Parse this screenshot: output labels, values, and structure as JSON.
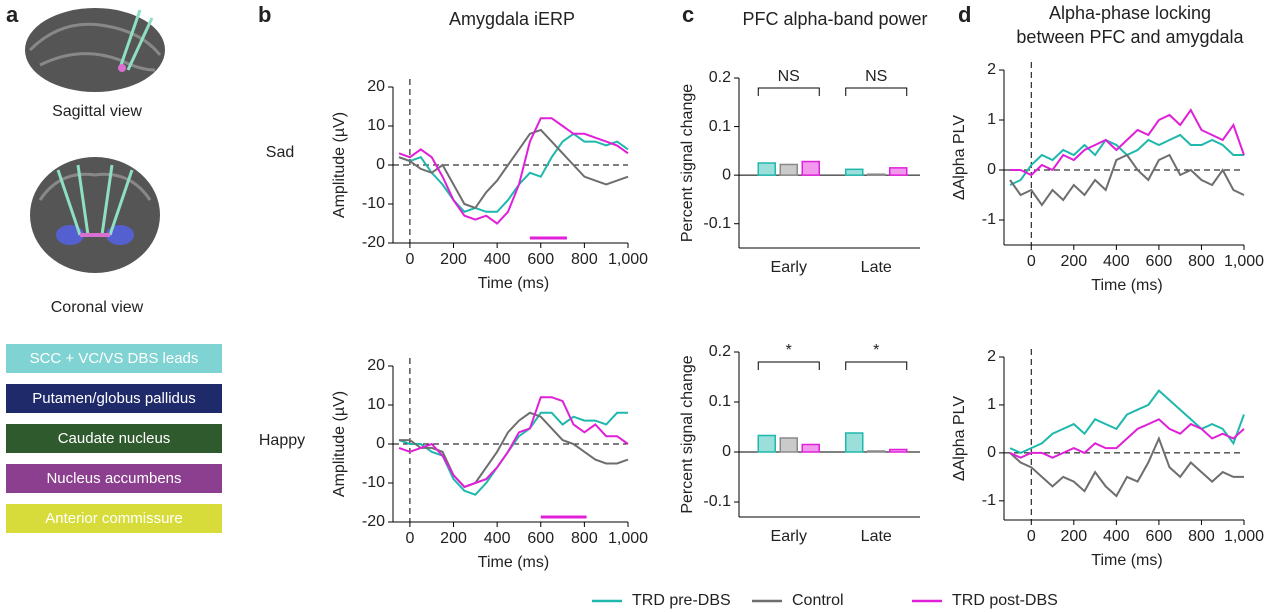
{
  "panel_labels": [
    "a",
    "b",
    "c",
    "d"
  ],
  "row_labels": [
    "Sad",
    "Happy"
  ],
  "view_labels": [
    "Sagittal view",
    "Coronal view"
  ],
  "anatomy_legend": [
    {
      "label": "SCC + VC/VS DBS leads",
      "color": "#7fd3d3"
    },
    {
      "label": "Putamen/globus pallidus",
      "color": "#1f2a6b"
    },
    {
      "label": "Caudate nucleus",
      "color": "#2e5a2e"
    },
    {
      "label": "Nucleus accumbens",
      "color": "#8c3f8f"
    },
    {
      "label": "Anterior commissure",
      "color": "#d7dc3a"
    }
  ],
  "chart_data": [
    {
      "type": "line",
      "title": "Amygdala iERP",
      "x_label": "Time (ms)",
      "y_label": "Amplitude (µV)",
      "x": [
        -50,
        0,
        50,
        100,
        150,
        200,
        250,
        300,
        350,
        400,
        450,
        500,
        550,
        600,
        650,
        700,
        750,
        800,
        850,
        900,
        950,
        1000
      ],
      "series": [
        {
          "name": "TRD pre-DBS",
          "color": "#1fb8ad",
          "values": [
            2,
            1,
            2,
            -2,
            -5,
            -9,
            -12,
            -11,
            -12,
            -12,
            -9,
            -5,
            -2,
            -3,
            2,
            6,
            8,
            6,
            6,
            5,
            6,
            4
          ]
        },
        {
          "name": "Control",
          "color": "#6e6e6e",
          "values": [
            2,
            1,
            -1,
            -2,
            0,
            -5,
            -10,
            -11,
            -7,
            -4,
            0,
            4,
            8,
            9,
            6,
            3,
            0,
            -3,
            -4,
            -5,
            -4,
            -3
          ]
        },
        {
          "name": "TRD post-DBS",
          "color": "#e020d8",
          "values": [
            3,
            2,
            4,
            2,
            -3,
            -9,
            -13,
            -14,
            -13,
            -15,
            -12,
            -5,
            6,
            12,
            12,
            10,
            8,
            8,
            7,
            6,
            5,
            3
          ]
        }
      ],
      "significance_window": [
        550,
        720
      ],
      "xlim": [
        -50,
        1000
      ],
      "xticks": [
        0,
        200,
        400,
        600,
        800,
        {
          "value": 1000,
          "label": "1,000"
        }
      ],
      "ylim": [
        -20,
        20
      ],
      "yticks": [
        -20,
        -10,
        0,
        10,
        20
      ]
    },
    {
      "type": "line",
      "x_label": "Time (ms)",
      "y_label": "Amplitude (µV)",
      "x": [
        -50,
        0,
        50,
        100,
        150,
        200,
        250,
        300,
        350,
        400,
        450,
        500,
        550,
        600,
        650,
        700,
        750,
        800,
        850,
        900,
        950,
        1000
      ],
      "series": [
        {
          "color": "#1fb8ad",
          "values": [
            1,
            0,
            0,
            -2,
            -3,
            -9,
            -12,
            -13,
            -10,
            -6,
            -2,
            2,
            4,
            8,
            8,
            5,
            7,
            6,
            6,
            5,
            8,
            8
          ]
        },
        {
          "color": "#6e6e6e",
          "values": [
            1,
            1,
            -1,
            -1,
            -2,
            -8,
            -11,
            -10,
            -6,
            -2,
            3,
            6,
            8,
            7,
            4,
            1,
            0,
            -2,
            -4,
            -5,
            -5,
            -4
          ]
        },
        {
          "color": "#e020d8",
          "values": [
            -1,
            -2,
            -1,
            0,
            -3,
            -8,
            -11,
            -10,
            -9,
            -6,
            -2,
            3,
            4,
            12,
            12,
            11,
            5,
            3,
            5,
            2,
            2,
            0
          ]
        }
      ],
      "significance_window": [
        600,
        810
      ],
      "xlim": [
        -50,
        1000
      ],
      "xticks": [
        0,
        200,
        400,
        600,
        800,
        {
          "value": 1000,
          "label": "1,000"
        }
      ],
      "ylim": [
        -20,
        20
      ],
      "yticks": [
        -20,
        -10,
        0,
        10,
        20
      ]
    },
    {
      "type": "bar",
      "title": "PFC alpha-band power",
      "y_label": "Percent signal change",
      "categories": [
        "Early",
        "Late"
      ],
      "series": [
        {
          "color": "#1fb8ad",
          "values": [
            0.025,
            0.012
          ]
        },
        {
          "color": "#8a8a8a",
          "values": [
            0.022,
            0.002
          ]
        },
        {
          "color": "#e020d8",
          "values": [
            0.028,
            0.015
          ]
        }
      ],
      "annotations": [
        "NS",
        "NS"
      ],
      "ylim": [
        -0.15,
        0.2
      ],
      "yticks": [
        -0.1,
        0,
        0.1,
        0.2
      ]
    },
    {
      "type": "bar",
      "y_label": "Percent signal change",
      "categories": [
        "Early",
        "Late"
      ],
      "series": [
        {
          "color": "#1fb8ad",
          "values": [
            0.033,
            0.038
          ]
        },
        {
          "color": "#8a8a8a",
          "values": [
            0.028,
            0.002
          ]
        },
        {
          "color": "#e020d8",
          "values": [
            0.015,
            0.005
          ]
        }
      ],
      "annotations": [
        "*",
        "*"
      ],
      "ylim": [
        -0.13,
        0.2
      ],
      "yticks": [
        -0.1,
        0,
        0.1,
        0.2
      ]
    },
    {
      "type": "line",
      "title": [
        "Alpha-phase locking",
        "between PFC and amygdala"
      ],
      "x_label": "Time (ms)",
      "y_label": "ΔAlpha PLV",
      "x": [
        -100,
        -50,
        0,
        50,
        100,
        150,
        200,
        250,
        300,
        350,
        400,
        450,
        500,
        550,
        600,
        650,
        700,
        750,
        800,
        850,
        900,
        950,
        1000
      ],
      "series": [
        {
          "color": "#1fb8ad",
          "values": [
            -0.3,
            -0.2,
            0.1,
            0.3,
            0.2,
            0.4,
            0.3,
            0.5,
            0.3,
            0.6,
            0.5,
            0.3,
            0.4,
            0.6,
            0.5,
            0.6,
            0.7,
            0.5,
            0.5,
            0.6,
            0.5,
            0.3,
            0.3
          ]
        },
        {
          "color": "#6e6e6e",
          "values": [
            -0.2,
            -0.5,
            -0.4,
            -0.7,
            -0.4,
            -0.6,
            -0.3,
            -0.5,
            -0.2,
            -0.4,
            0.2,
            0.3,
            0,
            -0.2,
            0.2,
            0.3,
            -0.1,
            0,
            -0.2,
            -0.3,
            0,
            -0.4,
            -0.5
          ]
        },
        {
          "color": "#e020d8",
          "values": [
            0,
            0,
            -0.1,
            0.1,
            0,
            0.3,
            0.2,
            0.4,
            0.5,
            0.6,
            0.4,
            0.6,
            0.8,
            0.7,
            1.0,
            1.1,
            0.9,
            1.2,
            0.8,
            0.7,
            0.6,
            0.9,
            0.3
          ]
        }
      ],
      "xlim": [
        -100,
        1000
      ],
      "xticks": [
        0,
        200,
        400,
        600,
        800,
        {
          "value": 1000,
          "label": "1,000"
        }
      ],
      "ylim": [
        -1.5,
        2
      ],
      "yticks": [
        -1,
        0,
        1,
        2
      ]
    },
    {
      "type": "line",
      "x_label": "Time (ms)",
      "y_label": "ΔAlpha PLV",
      "x": [
        -100,
        -50,
        0,
        50,
        100,
        150,
        200,
        250,
        300,
        350,
        400,
        450,
        500,
        550,
        600,
        650,
        700,
        750,
        800,
        850,
        900,
        950,
        1000
      ],
      "series": [
        {
          "color": "#1fb8ad",
          "values": [
            0.1,
            0,
            0.1,
            0.2,
            0.4,
            0.5,
            0.6,
            0.4,
            0.7,
            0.6,
            0.5,
            0.8,
            0.9,
            1.0,
            1.3,
            1.1,
            0.9,
            0.7,
            0.5,
            0.6,
            0.5,
            0.2,
            0.8
          ]
        },
        {
          "color": "#6e6e6e",
          "values": [
            0,
            -0.2,
            -0.3,
            -0.5,
            -0.7,
            -0.5,
            -0.6,
            -0.8,
            -0.4,
            -0.7,
            -0.9,
            -0.5,
            -0.6,
            -0.2,
            0.3,
            -0.3,
            -0.5,
            -0.2,
            -0.4,
            -0.6,
            -0.4,
            -0.5,
            -0.5
          ]
        },
        {
          "color": "#e020d8",
          "values": [
            0,
            -0.1,
            0,
            0,
            -0.1,
            0,
            0.1,
            0,
            0.2,
            0.1,
            0.1,
            0.3,
            0.5,
            0.6,
            0.7,
            0.5,
            0.4,
            0.6,
            0.5,
            0.3,
            0.4,
            0.3,
            0.5
          ]
        }
      ],
      "xlim": [
        -100,
        1000
      ],
      "xticks": [
        0,
        200,
        400,
        600,
        800,
        {
          "value": 1000,
          "label": "1,000"
        }
      ],
      "ylim": [
        -1.4,
        2
      ],
      "yticks": [
        -1,
        0,
        1,
        2
      ]
    }
  ]
}
